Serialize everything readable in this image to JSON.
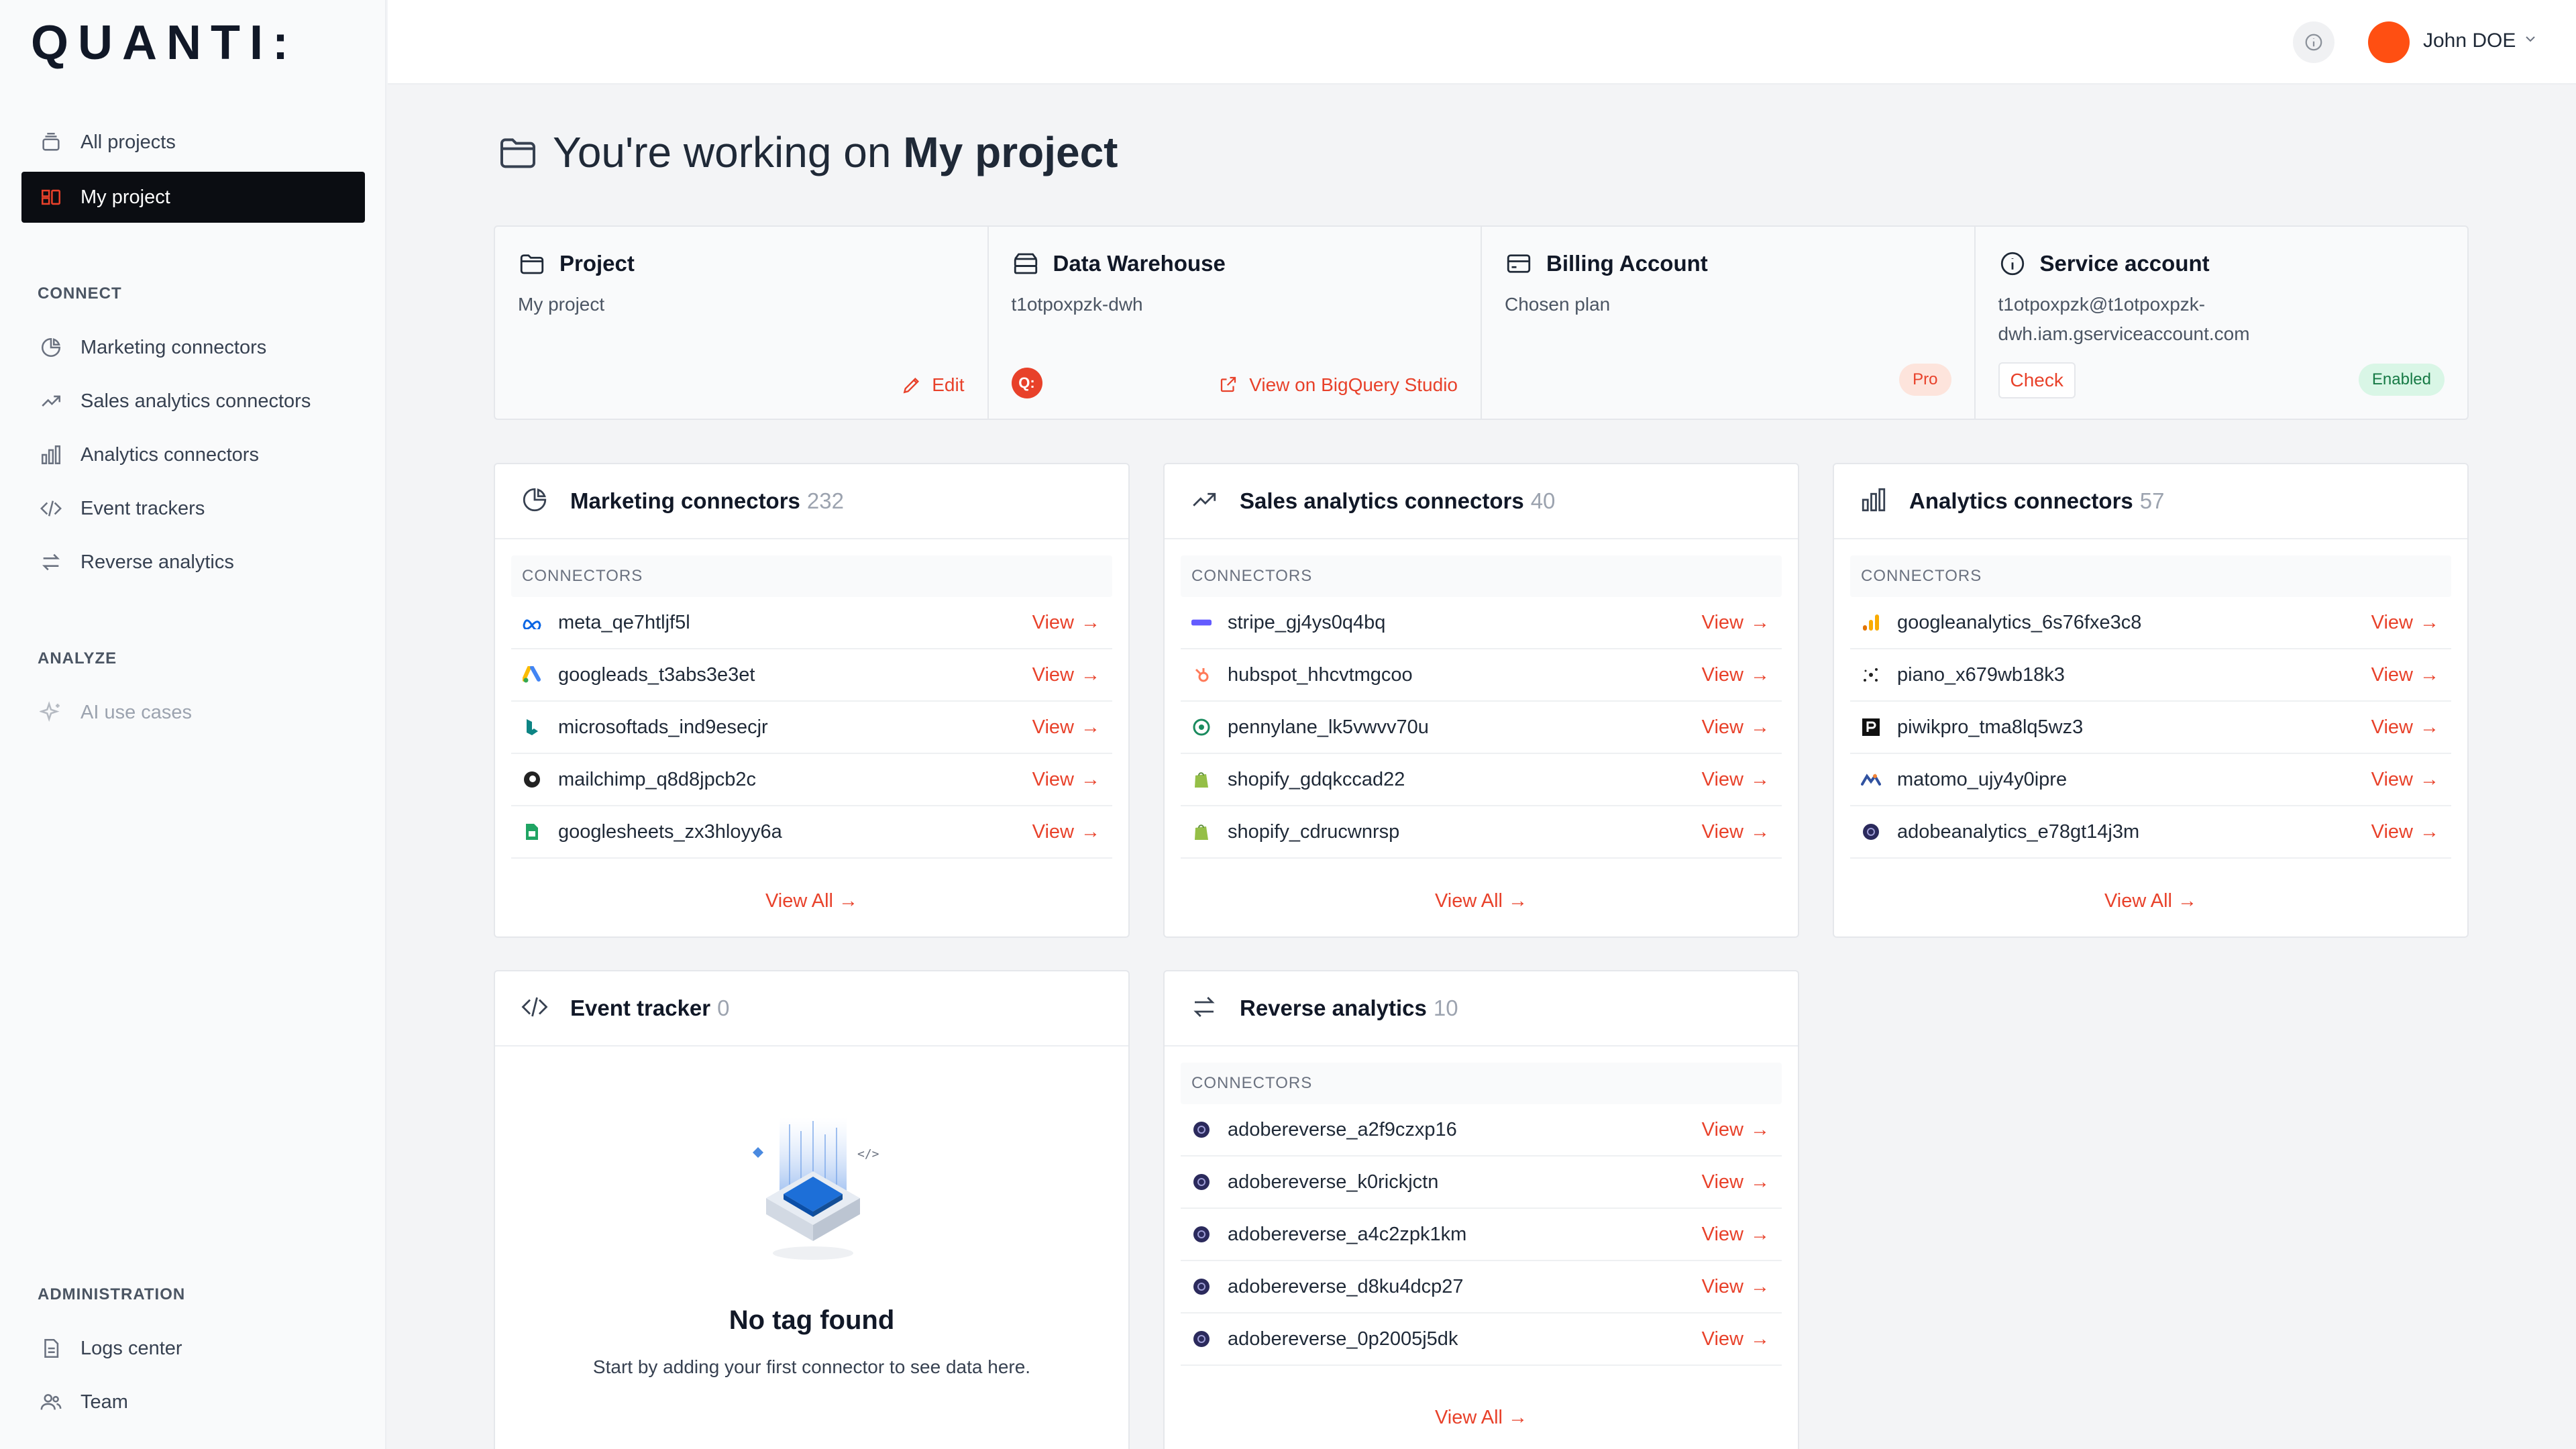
{
  "brand": {
    "logo_text": "QUANTI:"
  },
  "sidebar": {
    "top_items": [
      {
        "label": "All projects"
      },
      {
        "label": "My project"
      }
    ],
    "connect": {
      "label": "CONNECT",
      "items": [
        {
          "label": "Marketing connectors"
        },
        {
          "label": "Sales analytics connectors"
        },
        {
          "label": "Analytics connectors"
        },
        {
          "label": "Event trackers"
        },
        {
          "label": "Reverse analytics"
        }
      ]
    },
    "analyze": {
      "label": "ANALYZE",
      "items": [
        {
          "label": "AI use cases"
        }
      ]
    },
    "administration": {
      "label": "ADMINISTRATION",
      "items": [
        {
          "label": "Logs center"
        },
        {
          "label": "Team"
        }
      ]
    }
  },
  "header": {
    "user_name": "John DOE"
  },
  "page": {
    "title_prefix": "You're working on",
    "title_project": "My project"
  },
  "info_cards": {
    "project": {
      "title": "Project",
      "value": "My project",
      "action": "Edit"
    },
    "warehouse": {
      "title": "Data Warehouse",
      "value": "t1otpoxpzk-dwh",
      "action": "View on BigQuery Studio",
      "logo_text": "Q:"
    },
    "billing": {
      "title": "Billing Account",
      "value": "Chosen plan",
      "badge": "Pro"
    },
    "service": {
      "title": "Service account",
      "value_line1": "t1otpoxpzk@t1otpoxpzk-",
      "value_line2": "dwh.iam.gserviceaccount.com",
      "action": "Check",
      "badge": "Enabled"
    }
  },
  "panels": {
    "marketing": {
      "title": "Marketing connectors",
      "count": "232",
      "col_header": "CONNECTORS",
      "view_all": "View All",
      "rows": [
        {
          "name": "meta_qe7htljf5l",
          "view": "View"
        },
        {
          "name": "googleads_t3abs3e3et",
          "view": "View"
        },
        {
          "name": "microsoftads_ind9esecjr",
          "view": "View"
        },
        {
          "name": "mailchimp_q8d8jpcb2c",
          "view": "View"
        },
        {
          "name": "googlesheets_zx3hloyy6a",
          "view": "View"
        }
      ]
    },
    "sales": {
      "title": "Sales analytics connectors",
      "count": "40",
      "col_header": "CONNECTORS",
      "view_all": "View All",
      "rows": [
        {
          "name": "stripe_gj4ys0q4bq",
          "view": "View"
        },
        {
          "name": "hubspot_hhcvtmgcoo",
          "view": "View"
        },
        {
          "name": "pennylane_lk5vwvv70u",
          "view": "View"
        },
        {
          "name": "shopify_gdqkccad22",
          "view": "View"
        },
        {
          "name": "shopify_cdrucwnrsp",
          "view": "View"
        }
      ]
    },
    "analytics": {
      "title": "Analytics connectors",
      "count": "57",
      "col_header": "CONNECTORS",
      "view_all": "View All",
      "rows": [
        {
          "name": "googleanalytics_6s76fxe3c8",
          "view": "View"
        },
        {
          "name": "piano_x679wb18k3",
          "view": "View"
        },
        {
          "name": "piwikpro_tma8lq5wz3",
          "view": "View"
        },
        {
          "name": "matomo_ujy4y0ipre",
          "view": "View"
        },
        {
          "name": "adobeanalytics_e78gt14j3m",
          "view": "View"
        }
      ]
    },
    "event": {
      "title": "Event tracker",
      "count": "0",
      "empty_title": "No tag found",
      "empty_sub": "Start by adding your first connector to see data here."
    },
    "reverse": {
      "title": "Reverse analytics",
      "count": "10",
      "col_header": "CONNECTORS",
      "view_all": "View All",
      "rows": [
        {
          "name": "adobereverse_a2f9czxp16",
          "view": "View"
        },
        {
          "name": "adobereverse_k0rickjctn",
          "view": "View"
        },
        {
          "name": "adobereverse_a4c2zpk1km",
          "view": "View"
        },
        {
          "name": "adobereverse_d8ku4dcp27",
          "view": "View"
        },
        {
          "name": "adobereverse_0p2005j5dk",
          "view": "View"
        }
      ]
    }
  },
  "colors": {
    "accent": "#e8412a",
    "active_nav_bg": "#0b0d12",
    "avatar": "#ff4f12"
  }
}
